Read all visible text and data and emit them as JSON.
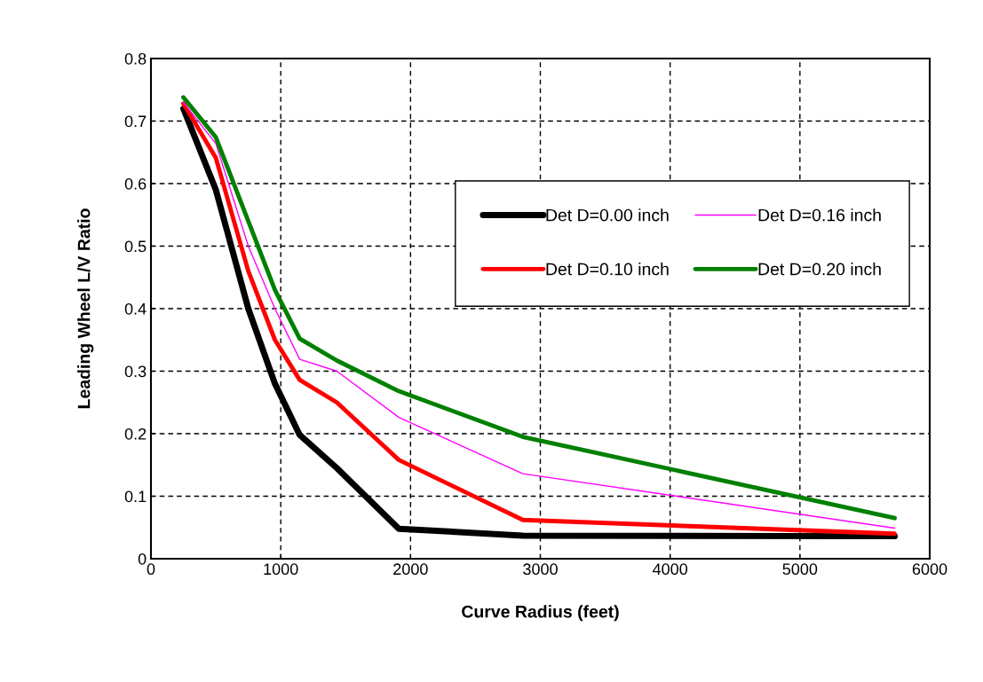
{
  "chart_data": {
    "type": "line",
    "xlabel": "Curve Radius (feet)",
    "ylabel": "Leading Wheel L/V Ratio",
    "x": [
      250,
      500,
      750,
      955,
      1146,
      1432,
      1910,
      2865,
      5730
    ],
    "series": [
      {
        "name": "Det D=0.00 inch",
        "color": "#000000",
        "values": [
          0.72,
          0.59,
          0.4,
          0.28,
          0.198,
          0.145,
          0.048,
          0.037,
          0.036
        ]
      },
      {
        "name": "Det D=0.10 inch",
        "color": "#ff0000",
        "values": [
          0.728,
          0.641,
          0.46,
          0.35,
          0.286,
          0.25,
          0.158,
          0.062,
          0.04
        ]
      },
      {
        "name": "Det D=0.16 inch",
        "color": "#ff00ff",
        "values": [
          0.73,
          0.664,
          0.5,
          0.4,
          0.319,
          0.3,
          0.226,
          0.136,
          0.049
        ]
      },
      {
        "name": "Det D=0.20 inch",
        "color": "#008000",
        "values": [
          0.738,
          0.674,
          0.54,
          0.43,
          0.352,
          0.317,
          0.268,
          0.195,
          0.065
        ]
      }
    ],
    "xlim": [
      0,
      6000
    ],
    "xticks": [
      0,
      1000,
      2000,
      3000,
      4000,
      5000,
      6000
    ],
    "ylim": [
      0,
      0.8
    ],
    "yticks": [
      0,
      0.1,
      0.2,
      0.3,
      0.4,
      0.5,
      0.6,
      0.7,
      0.8
    ],
    "grid": true,
    "legend": "right",
    "marker": "none",
    "line_style": "solid"
  }
}
